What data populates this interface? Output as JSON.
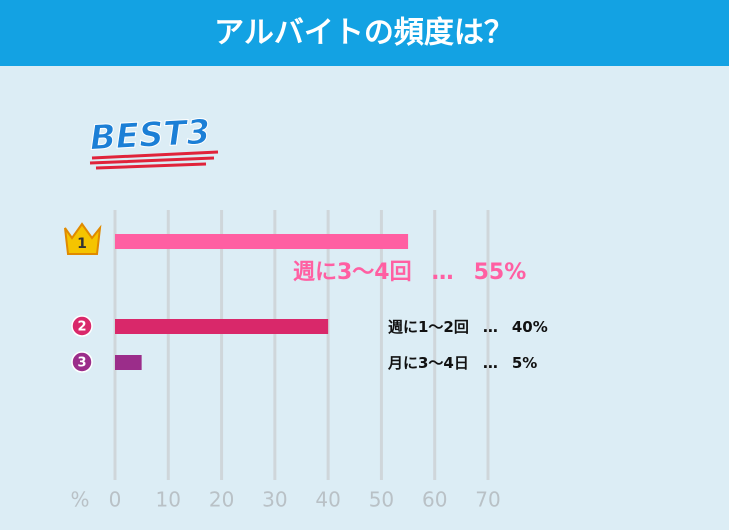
{
  "chart_data": {
    "type": "bar",
    "orientation": "horizontal",
    "title": "アルバイトの頻度は？",
    "badge": "BEST3",
    "ranks": [
      "1",
      "2",
      "3"
    ],
    "categories": [
      "週に3〜4回",
      "週に1〜2回",
      "月に3〜4日"
    ],
    "values": [
      55,
      40,
      5
    ],
    "value_labels": [
      "55%",
      "40%",
      "5%"
    ],
    "label_separator": "…",
    "colors": [
      "#ff5fa2",
      "#d9286a",
      "#9b2d8a"
    ],
    "x_label": "%",
    "xlim": [
      0,
      70
    ],
    "xticks": [
      0,
      10,
      20,
      30,
      40,
      50,
      60,
      70
    ],
    "grid": true
  }
}
